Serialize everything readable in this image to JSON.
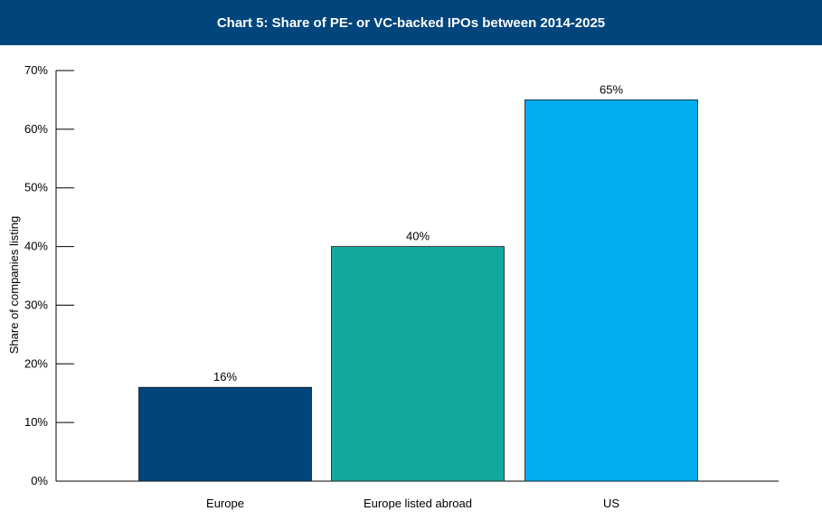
{
  "chart_data": {
    "type": "bar",
    "title": "Chart 5: Share of PE- or VC-backed IPOs between 2014-2025",
    "xlabel": "",
    "ylabel": "Share of companies listing",
    "categories": [
      "Europe",
      "Europe listed abroad",
      "US"
    ],
    "values": [
      16,
      40,
      65
    ],
    "data_labels": [
      "16%",
      "40%",
      "65%"
    ],
    "ylim": [
      0,
      70
    ],
    "yticks": [
      0,
      10,
      20,
      30,
      40,
      50,
      60,
      70
    ],
    "ytick_labels": [
      "0%",
      "10%",
      "20%",
      "30%",
      "40%",
      "50%",
      "60%",
      "70%"
    ],
    "colors": [
      "#00457c",
      "#13a89e",
      "#00adef"
    ],
    "grid": false,
    "legend": "none"
  }
}
